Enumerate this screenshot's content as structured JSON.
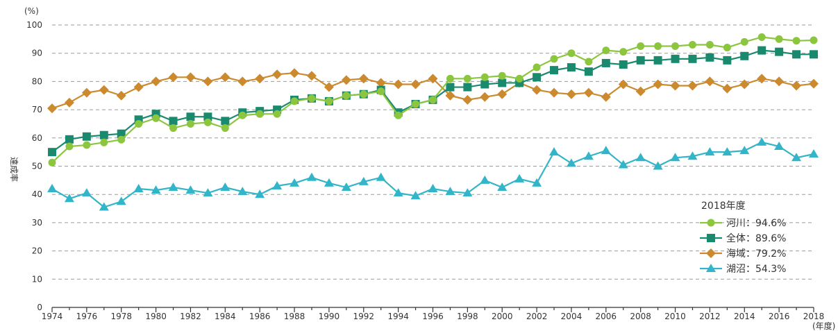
{
  "chart_data": {
    "type": "line",
    "title": "",
    "ylabel": "達成率",
    "ylabel_unit": "(%)",
    "xlabel_unit": "(年度)",
    "ylim": [
      0,
      100
    ],
    "yticks": [
      0,
      10,
      20,
      30,
      40,
      50,
      60,
      70,
      80,
      90,
      100
    ],
    "x": [
      1974,
      1975,
      1976,
      1977,
      1978,
      1979,
      1980,
      1981,
      1982,
      1983,
      1984,
      1985,
      1986,
      1987,
      1988,
      1989,
      1990,
      1991,
      1992,
      1993,
      1994,
      1995,
      1996,
      1997,
      1998,
      1999,
      2000,
      2001,
      2002,
      2003,
      2004,
      2005,
      2006,
      2007,
      2008,
      2009,
      2010,
      2011,
      2012,
      2013,
      2014,
      2015,
      2016,
      2017,
      2018
    ],
    "xticks": [
      1974,
      1976,
      1978,
      1980,
      1982,
      1984,
      1986,
      1988,
      1990,
      1992,
      1994,
      1996,
      1998,
      2000,
      2002,
      2004,
      2006,
      2008,
      2010,
      2012,
      2014,
      2016,
      2018
    ],
    "grid": true,
    "legend": {
      "title": "2018年度",
      "placement": "bottom-right"
    },
    "series": [
      {
        "key": "river",
        "legend_label": "河川：94.6%",
        "color": "#8cc63f",
        "marker": "circle",
        "values": [
          51.3,
          57.0,
          57.5,
          58.4,
          59.4,
          65.0,
          67.0,
          63.5,
          65.0,
          65.5,
          63.5,
          68.0,
          68.5,
          68.5,
          73.0,
          74.0,
          73.0,
          75.0,
          75.5,
          76.5,
          68.0,
          72.0,
          73.5,
          81.0,
          81.0,
          81.5,
          82.0,
          81.0,
          85.0,
          88.0,
          90.0,
          87.0,
          91.0,
          90.5,
          92.5,
          92.5,
          92.5,
          93.0,
          93.0,
          92.0,
          94.0,
          95.7,
          95.0,
          94.4,
          94.6
        ]
      },
      {
        "key": "total",
        "legend_label": "全体：89.6%",
        "color": "#1a8a6e",
        "marker": "square",
        "values": [
          55.0,
          59.5,
          60.5,
          61.0,
          61.5,
          66.5,
          68.5,
          66.0,
          67.5,
          67.5,
          66.0,
          69.0,
          69.5,
          70.0,
          73.5,
          74.0,
          73.0,
          75.0,
          75.5,
          77.0,
          69.0,
          72.0,
          73.5,
          78.0,
          78.0,
          79.0,
          79.5,
          79.5,
          81.5,
          84.0,
          85.0,
          83.5,
          86.5,
          86.0,
          87.5,
          87.5,
          88.0,
          88.0,
          88.5,
          87.5,
          89.0,
          91.0,
          90.5,
          89.6,
          89.6
        ]
      },
      {
        "key": "sea",
        "legend_label": "海域：79.2%",
        "color": "#cc8a2e",
        "marker": "diamond",
        "values": [
          70.5,
          72.5,
          76.0,
          77.0,
          75.0,
          78.0,
          80.0,
          81.5,
          81.5,
          80.0,
          81.5,
          80.0,
          81.0,
          82.5,
          83.0,
          82.0,
          78.0,
          80.5,
          81.0,
          79.5,
          79.0,
          79.0,
          81.0,
          75.0,
          73.5,
          74.5,
          75.5,
          79.5,
          77.0,
          76.0,
          75.5,
          76.0,
          74.5,
          79.0,
          76.5,
          79.0,
          78.5,
          78.5,
          80.0,
          77.5,
          79.0,
          81.0,
          80.0,
          78.5,
          79.2
        ]
      },
      {
        "key": "lake",
        "legend_label": "湖沼：54.3%",
        "color": "#33b5c9",
        "marker": "triangle",
        "values": [
          42.0,
          38.5,
          40.5,
          35.5,
          37.5,
          42.0,
          41.5,
          42.5,
          41.5,
          40.5,
          42.5,
          41.0,
          40.0,
          43.0,
          44.0,
          46.0,
          44.0,
          42.5,
          44.5,
          46.0,
          40.5,
          39.5,
          42.0,
          41.0,
          40.5,
          45.0,
          42.5,
          45.5,
          44.0,
          55.0,
          51.0,
          53.5,
          55.5,
          50.5,
          53.0,
          50.0,
          53.0,
          53.5,
          55.0,
          55.0,
          55.5,
          58.5,
          57.0,
          53.0,
          54.3
        ]
      }
    ]
  }
}
